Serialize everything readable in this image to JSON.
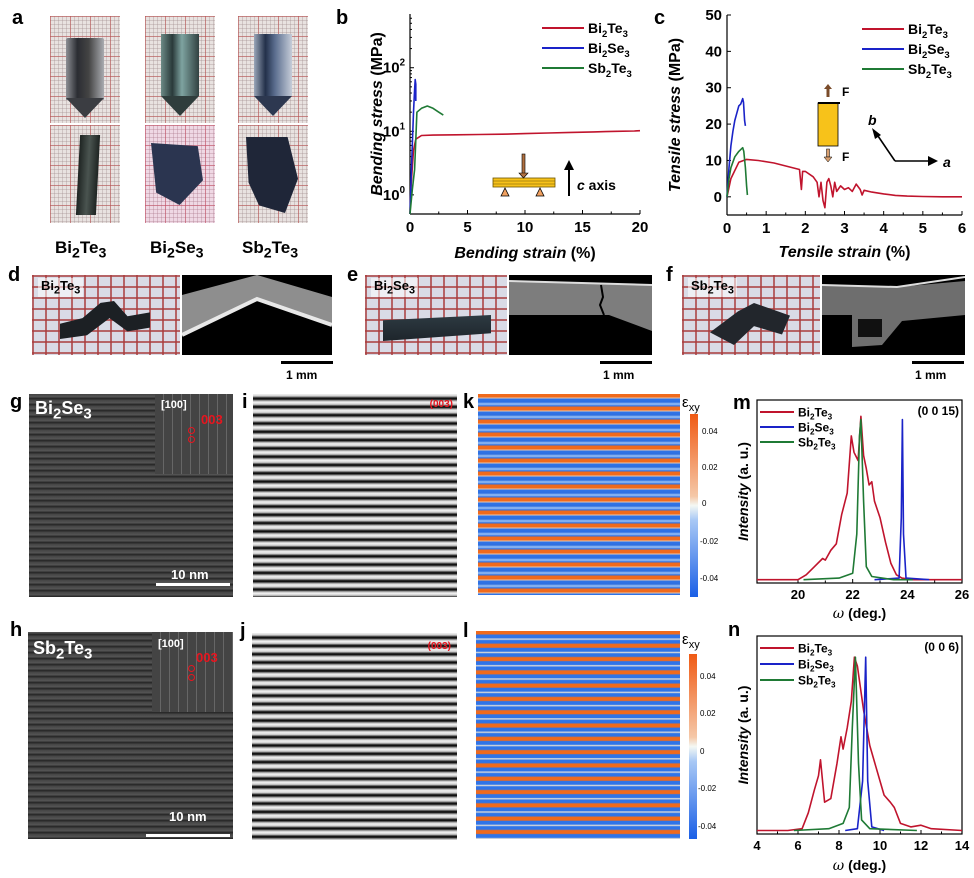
{
  "panels": {
    "a": "a",
    "b": "b",
    "c": "c",
    "d": "d",
    "e": "e",
    "f": "f",
    "g": "g",
    "h": "h",
    "i": "i",
    "j": "j",
    "k": "k",
    "l": "l",
    "m": "m",
    "n": "n"
  },
  "materials": {
    "bi2te3": {
      "base1": "Bi",
      "sub1": "2",
      "base2": "Te",
      "sub2": "3"
    },
    "bi2se3": {
      "base1": "Bi",
      "sub1": "2",
      "base2": "Se",
      "sub2": "3"
    },
    "sb2te3": {
      "base1": "Sb",
      "sub1": "2",
      "base2": "Te",
      "sub2": "3"
    }
  },
  "scale_bars": {
    "mm": "1 mm",
    "nm": "10 nm"
  },
  "tem": {
    "zone_axis": "[100]",
    "spot_label": "003",
    "fringe_label": "(003)"
  },
  "strain_map": {
    "symbol": "ε",
    "subscript": "xy",
    "ticks": [
      "0.04",
      "0.02",
      "0",
      "-0.02",
      "-0.04"
    ]
  },
  "colors": {
    "bi2te3": "#c0142d",
    "bi2se3": "#1a23c8",
    "sb2te3": "#1f7a35",
    "beam": "#f7c21a",
    "annotation_red": "#e8141e"
  },
  "chart_data": [
    {
      "id": "b",
      "type": "line",
      "xlabel": "Bending strain (%)",
      "ylabel": "Bending stress (MPa)",
      "xlim": [
        0,
        20
      ],
      "ylim": [
        0.5,
        700
      ],
      "yscale": "log",
      "xticks": [
        "0",
        "5",
        "10",
        "15",
        "20"
      ],
      "yticks": [
        {
          "base": "10",
          "exp": "0",
          "value": 1
        },
        {
          "base": "10",
          "exp": "1",
          "value": 10
        },
        {
          "base": "10",
          "exp": "2",
          "value": 100
        }
      ],
      "legend": [
        "Bi2Te3",
        "Bi2Se3",
        "Sb2Te3"
      ],
      "legend_position": "top-right",
      "inset_text": {
        "italic": "c",
        "rest": " axis"
      },
      "series": [
        {
          "name": "Bi2Te3",
          "x": [
            0,
            0.1,
            0.3,
            0.5,
            1,
            2,
            4,
            6,
            8,
            10,
            12,
            14,
            16,
            17,
            18,
            19.5,
            20
          ],
          "y": [
            0.5,
            1.5,
            5,
            7.5,
            8.6,
            8.7,
            8.8,
            8.9,
            9.0,
            9.2,
            9.4,
            9.6,
            9.8,
            9.9,
            10.0,
            10.1,
            10.2
          ]
        },
        {
          "name": "Bi2Se3",
          "x": [
            0,
            0.1,
            0.2,
            0.3,
            0.4,
            0.45,
            0.5,
            0.5
          ],
          "y": [
            0.5,
            2,
            6,
            20,
            45,
            65,
            55,
            30
          ]
        },
        {
          "name": "Sb2Te3",
          "x": [
            0,
            0.2,
            0.4,
            0.6,
            1.0,
            1.5,
            2.0,
            2.5,
            2.9
          ],
          "y": [
            0.5,
            1.2,
            2.5,
            20,
            23,
            25,
            23,
            20,
            18
          ]
        }
      ]
    },
    {
      "id": "c",
      "type": "line",
      "xlabel": "Tensile strain (%)",
      "ylabel": "Tensile stress (MPa)",
      "xlim": [
        0,
        6
      ],
      "ylim": [
        -5,
        50
      ],
      "xticks": [
        "0",
        "1",
        "2",
        "3",
        "4",
        "5",
        "6"
      ],
      "yticks": [
        "0",
        "10",
        "20",
        "30",
        "40",
        "50"
      ],
      "legend": [
        "Bi2Te3",
        "Bi2Se3",
        "Sb2Te3"
      ],
      "legend_position": "top-right",
      "inset_text": {
        "force": "F",
        "axis_a": "a",
        "axis_b": "b"
      },
      "series": [
        {
          "name": "Bi2Te3",
          "x": [
            0,
            0.1,
            0.3,
            0.5,
            0.8,
            1.2,
            1.6,
            1.85,
            1.9,
            1.93,
            2.0,
            2.2,
            2.3,
            2.35,
            2.4,
            2.45,
            2.5,
            2.55,
            2.6,
            2.65,
            2.7,
            2.75,
            2.8,
            2.9,
            3.0,
            3.1,
            3.2,
            3.3,
            3.4,
            3.45,
            3.5,
            3.7,
            4.0,
            4.3,
            4.6,
            5.0,
            5.5,
            6.0
          ],
          "y": [
            0,
            5,
            9.5,
            10.3,
            10,
            9.3,
            8.2,
            7.5,
            2,
            7,
            7,
            5.5,
            4,
            0,
            4,
            -1,
            -3,
            4,
            5,
            3,
            0,
            4,
            1.5,
            3,
            2,
            2.5,
            1.5,
            3.5,
            2,
            0.5,
            1.8,
            1.3,
            0.8,
            0.4,
            0.2,
            0.1,
            0,
            0
          ]
        },
        {
          "name": "Bi2Se3",
          "x": [
            0,
            0.05,
            0.1,
            0.15,
            0.2,
            0.25,
            0.3,
            0.35,
            0.4,
            0.42,
            0.45,
            0.47
          ],
          "y": [
            0,
            8,
            14,
            18,
            21,
            23,
            25,
            25.5,
            27,
            26,
            21,
            19.5
          ]
        },
        {
          "name": "Sb2Te3",
          "x": [
            0,
            0.05,
            0.1,
            0.2,
            0.3,
            0.4,
            0.43,
            0.47,
            0.5,
            0.52
          ],
          "y": [
            0,
            5,
            8,
            11,
            12.5,
            13.5,
            12.5,
            8,
            3,
            0.5
          ]
        }
      ]
    },
    {
      "id": "m",
      "type": "line",
      "xlabel_symbol": "ω",
      "xlabel_rest": " (deg.)",
      "ylabel": "Intensity (a. u.)",
      "xlim": [
        18.5,
        26
      ],
      "ylim": [
        0,
        1.12
      ],
      "xticks": [
        "20",
        "22",
        "24",
        "26"
      ],
      "annotation": "(0 0 15)",
      "legend": [
        "Bi2Te3",
        "Bi2Se3",
        "Sb2Te3"
      ],
      "legend_position": "top-left",
      "series": [
        {
          "name": "Bi2Te3",
          "x": [
            18.5,
            20.0,
            20.3,
            20.6,
            20.9,
            21.0,
            21.2,
            21.4,
            21.6,
            21.8,
            21.95,
            22.05,
            22.2,
            22.3,
            22.4,
            22.5,
            22.6,
            22.7,
            22.8,
            23.0,
            23.2,
            23.4,
            23.6,
            23.8,
            24.2,
            26.0
          ],
          "y": [
            0.02,
            0.02,
            0.05,
            0.1,
            0.15,
            0.14,
            0.2,
            0.24,
            0.42,
            0.55,
            0.9,
            0.8,
            0.75,
            1.02,
            0.78,
            0.7,
            0.6,
            0.62,
            0.5,
            0.4,
            0.25,
            0.12,
            0.05,
            0.03,
            0.02,
            0.02
          ]
        },
        {
          "name": "Bi2Se3",
          "x": [
            22.8,
            23.7,
            23.78,
            23.82,
            23.86,
            23.95,
            24.8
          ],
          "y": [
            0.02,
            0.03,
            0.4,
            1.0,
            0.3,
            0.03,
            0.02
          ]
        },
        {
          "name": "Sb2Te3",
          "x": [
            20.2,
            21.5,
            22.0,
            22.15,
            22.25,
            22.3,
            22.4,
            22.5,
            22.7,
            23.5,
            24.2
          ],
          "y": [
            0.02,
            0.03,
            0.06,
            0.3,
            0.9,
            1.0,
            0.5,
            0.1,
            0.04,
            0.02,
            0.02
          ]
        }
      ]
    },
    {
      "id": "n",
      "type": "line",
      "xlabel_symbol": "ω",
      "xlabel_rest": " (deg.)",
      "ylabel": "Intensity (a. u.)",
      "xlim": [
        4,
        14
      ],
      "ylim": [
        0,
        1.12
      ],
      "xticks": [
        "4",
        "6",
        "8",
        "10",
        "12",
        "14"
      ],
      "annotation": "(0 0 6)",
      "legend": [
        "Bi2Te3",
        "Bi2Se3",
        "Sb2Te3"
      ],
      "legend_position": "top-left",
      "series": [
        {
          "name": "Bi2Te3",
          "x": [
            4,
            5.5,
            6.2,
            6.5,
            6.8,
            7.0,
            7.1,
            7.3,
            7.6,
            7.9,
            8.1,
            8.2,
            8.4,
            8.6,
            8.75,
            8.9,
            9.2,
            9.5,
            9.8,
            10.2,
            10.5,
            10.7,
            11.0,
            11.5,
            12.0,
            12.5,
            14.0
          ],
          "y": [
            0.02,
            0.02,
            0.03,
            0.12,
            0.25,
            0.33,
            0.42,
            0.18,
            0.2,
            0.4,
            0.55,
            0.48,
            0.6,
            0.75,
            1.0,
            0.95,
            0.7,
            0.5,
            0.38,
            0.22,
            0.18,
            0.15,
            0.06,
            0.04,
            0.05,
            0.03,
            0.02
          ]
        },
        {
          "name": "Bi2Se3",
          "x": [
            8.3,
            8.9,
            9.15,
            9.3,
            9.4,
            9.6,
            10.2
          ],
          "y": [
            0.02,
            0.03,
            0.3,
            1.0,
            0.3,
            0.04,
            0.02
          ]
        },
        {
          "name": "Sb2Te3",
          "x": [
            5.8,
            7.5,
            8.2,
            8.5,
            8.65,
            8.8,
            8.95,
            9.1,
            9.5,
            11.8
          ],
          "y": [
            0.02,
            0.03,
            0.06,
            0.15,
            0.6,
            1.0,
            0.4,
            0.08,
            0.03,
            0.02
          ]
        }
      ]
    }
  ]
}
